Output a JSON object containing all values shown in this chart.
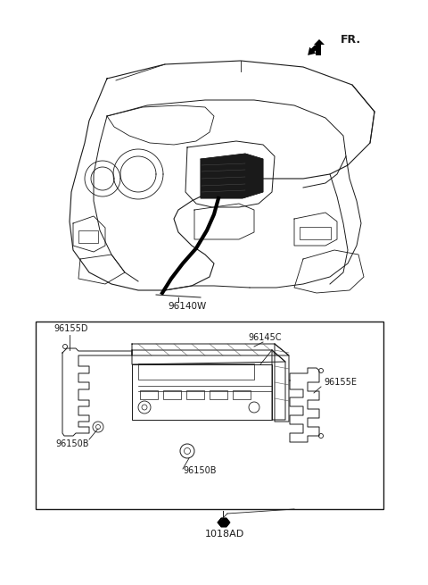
{
  "bg_color": "#ffffff",
  "line_color": "#1a1a1a",
  "figsize": [
    4.8,
    6.55
  ],
  "dpi": 100,
  "labels": {
    "fr": "FR.",
    "part_upper": "96140W",
    "part_155d": "96155D",
    "part_145c": "96145C",
    "part_155e": "96155E",
    "part_150b_left": "96150B",
    "part_150b_bottom": "96150B",
    "part_1018ad": "1018AD"
  }
}
